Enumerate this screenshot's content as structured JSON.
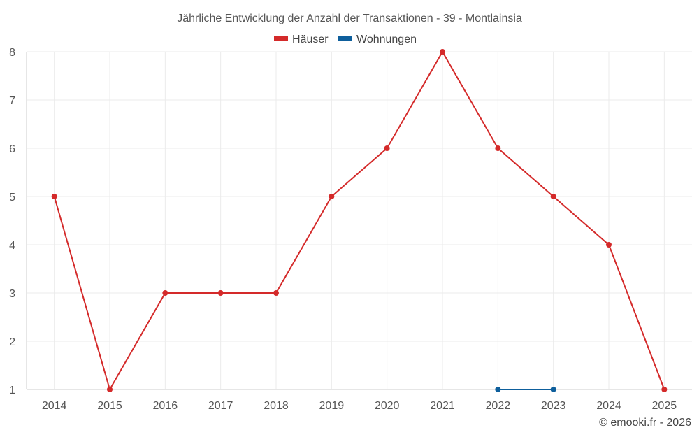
{
  "chart_data": {
    "type": "line",
    "title": "Jährliche Entwicklung der Anzahl der Transaktionen - 39 - Montlainsia",
    "x": [
      "2014",
      "2015",
      "2016",
      "2017",
      "2018",
      "2019",
      "2020",
      "2021",
      "2022",
      "2023",
      "2024",
      "2025"
    ],
    "series": [
      {
        "name": "Häuser",
        "color": "#d42a2a",
        "values": [
          5,
          1,
          3,
          3,
          3,
          5,
          6,
          8,
          6,
          5,
          4,
          1
        ]
      },
      {
        "name": "Wohnungen",
        "color": "#0e5f9c",
        "values": [
          null,
          null,
          null,
          null,
          null,
          null,
          null,
          null,
          1,
          1,
          null,
          null
        ]
      }
    ],
    "ylim": [
      1,
      8
    ],
    "yticks": [
      1,
      2,
      3,
      4,
      5,
      6,
      7,
      8
    ],
    "grid": true,
    "legend_position": "top-center",
    "xlabel": "",
    "ylabel": ""
  },
  "credit": "© emooki.fr - 2026"
}
